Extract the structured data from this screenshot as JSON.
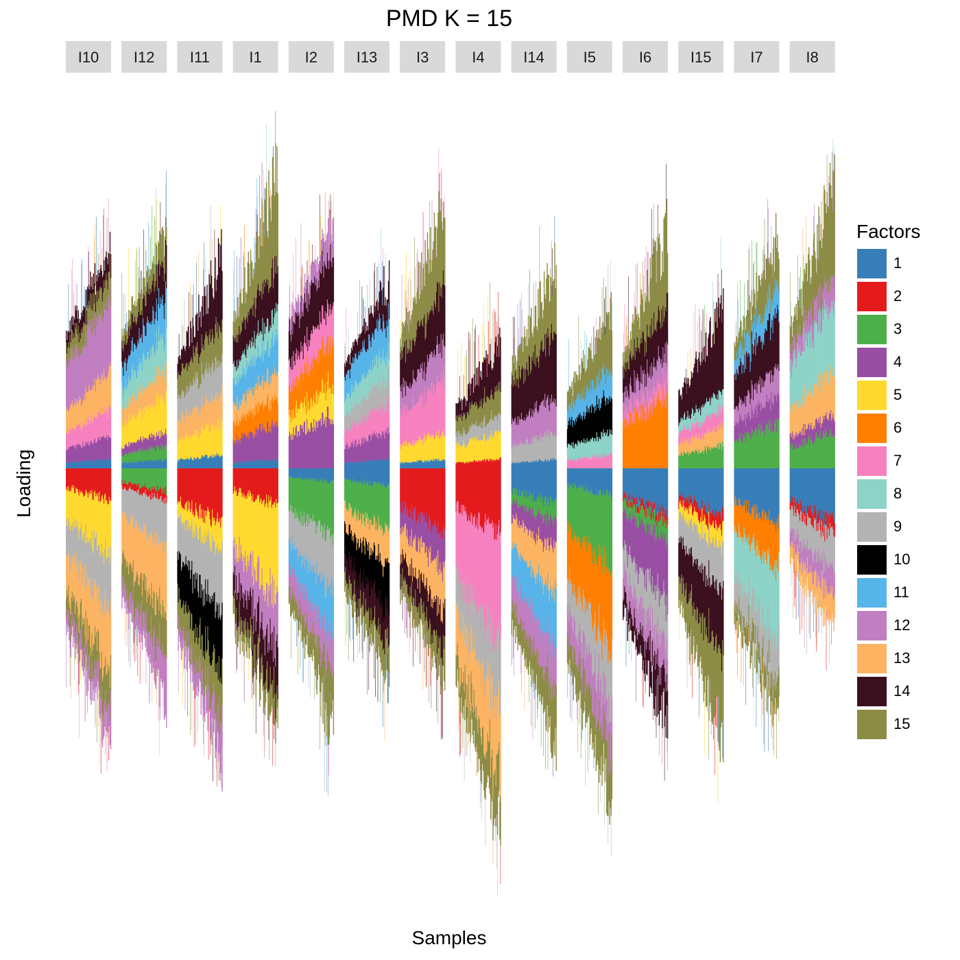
{
  "chart_data": {
    "type": "bar",
    "subtype": "stacked, faceted, diverging structure plot",
    "title": "PMD K = 15",
    "xlabel": "Samples",
    "ylabel": "Loading",
    "grid": false,
    "legend": {
      "title": "Factors",
      "position": "right"
    },
    "factors": [
      {
        "name": "1",
        "color": "#377EB8"
      },
      {
        "name": "2",
        "color": "#E41A1C"
      },
      {
        "name": "3",
        "color": "#4DAF4A"
      },
      {
        "name": "4",
        "color": "#984EA3"
      },
      {
        "name": "5",
        "color": "#FFD92F"
      },
      {
        "name": "6",
        "color": "#FF7F00"
      },
      {
        "name": "7",
        "color": "#F781BF"
      },
      {
        "name": "8",
        "color": "#8DD3C7"
      },
      {
        "name": "9",
        "color": "#B3B3B3"
      },
      {
        "name": "10",
        "color": "#000000"
      },
      {
        "name": "11",
        "color": "#56B4E9"
      },
      {
        "name": "12",
        "color": "#C07FC0"
      },
      {
        "name": "13",
        "color": "#FDB462"
      },
      {
        "name": "14",
        "color": "#3A0F1E"
      },
      {
        "name": "15",
        "color": "#8C8C46"
      }
    ],
    "facets": [
      {
        "label": "I10",
        "n_samples": 60,
        "pos_max": 0.62,
        "neg_max": 0.78,
        "pos": [
          {
            "f": 1,
            "v": 0.02
          },
          {
            "f": 4,
            "v": 0.05
          },
          {
            "f": 7,
            "v": 0.06
          },
          {
            "f": 13,
            "v": 0.08
          },
          {
            "f": 12,
            "v": 0.16
          },
          {
            "f": 15,
            "v": 0.06
          },
          {
            "f": 14,
            "v": 0.05
          }
        ],
        "neg": [
          {
            "f": 2,
            "v": 0.07
          },
          {
            "f": 5,
            "v": 0.12
          },
          {
            "f": 9,
            "v": 0.12
          },
          {
            "f": 13,
            "v": 0.14
          },
          {
            "f": 15,
            "v": 0.08
          },
          {
            "f": 12,
            "v": 0.06
          }
        ]
      },
      {
        "label": "I12",
        "n_samples": 60,
        "pos_max": 0.72,
        "neg_max": 0.72,
        "pos": [
          {
            "f": 1,
            "v": 0.02
          },
          {
            "f": 3,
            "v": 0.03
          },
          {
            "f": 4,
            "v": 0.03
          },
          {
            "f": 5,
            "v": 0.08
          },
          {
            "f": 13,
            "v": 0.06
          },
          {
            "f": 8,
            "v": 0.08
          },
          {
            "f": 11,
            "v": 0.08
          },
          {
            "f": 14,
            "v": 0.08
          },
          {
            "f": 15,
            "v": 0.05
          }
        ],
        "neg": [
          {
            "f": 3,
            "v": 0.05
          },
          {
            "f": 2,
            "v": 0.02
          },
          {
            "f": 9,
            "v": 0.1
          },
          {
            "f": 13,
            "v": 0.15
          },
          {
            "f": 15,
            "v": 0.1
          },
          {
            "f": 12,
            "v": 0.06
          }
        ]
      },
      {
        "label": "I11",
        "n_samples": 60,
        "pos_max": 0.68,
        "neg_max": 0.9,
        "pos": [
          {
            "f": 1,
            "v": 0.03
          },
          {
            "f": 5,
            "v": 0.07
          },
          {
            "f": 13,
            "v": 0.07
          },
          {
            "f": 9,
            "v": 0.08
          },
          {
            "f": 15,
            "v": 0.08
          },
          {
            "f": 14,
            "v": 0.05
          }
        ],
        "neg": [
          {
            "f": 2,
            "v": 0.12
          },
          {
            "f": 5,
            "v": 0.06
          },
          {
            "f": 9,
            "v": 0.14
          },
          {
            "f": 10,
            "v": 0.14
          },
          {
            "f": 15,
            "v": 0.1
          },
          {
            "f": 12,
            "v": 0.06
          }
        ]
      },
      {
        "label": "I1",
        "n_samples": 60,
        "pos_max": 0.95,
        "neg_max": 0.78,
        "pos": [
          {
            "f": 1,
            "v": 0.02
          },
          {
            "f": 4,
            "v": 0.08
          },
          {
            "f": 6,
            "v": 0.06
          },
          {
            "f": 13,
            "v": 0.06
          },
          {
            "f": 11,
            "v": 0.08
          },
          {
            "f": 8,
            "v": 0.06
          },
          {
            "f": 14,
            "v": 0.1
          },
          {
            "f": 15,
            "v": 0.06
          }
        ],
        "neg": [
          {
            "f": 2,
            "v": 0.08
          },
          {
            "f": 5,
            "v": 0.2
          },
          {
            "f": 12,
            "v": 0.12
          },
          {
            "f": 14,
            "v": 0.1
          },
          {
            "f": 15,
            "v": 0.06
          }
        ]
      },
      {
        "label": "I2",
        "n_samples": 60,
        "pos_max": 0.75,
        "neg_max": 0.82,
        "pos": [
          {
            "f": 4,
            "v": 0.12
          },
          {
            "f": 5,
            "v": 0.07
          },
          {
            "f": 6,
            "v": 0.1
          },
          {
            "f": 7,
            "v": 0.08
          },
          {
            "f": 14,
            "v": 0.12
          },
          {
            "f": 12,
            "v": 0.05
          }
        ],
        "neg": [
          {
            "f": 1,
            "v": 0.03
          },
          {
            "f": 3,
            "v": 0.12
          },
          {
            "f": 9,
            "v": 0.12
          },
          {
            "f": 11,
            "v": 0.1
          },
          {
            "f": 12,
            "v": 0.08
          },
          {
            "f": 15,
            "v": 0.06
          }
        ]
      },
      {
        "label": "I13",
        "n_samples": 60,
        "pos_max": 0.6,
        "neg_max": 0.62,
        "pos": [
          {
            "f": 1,
            "v": 0.02
          },
          {
            "f": 4,
            "v": 0.06
          },
          {
            "f": 7,
            "v": 0.06
          },
          {
            "f": 9,
            "v": 0.06
          },
          {
            "f": 8,
            "v": 0.06
          },
          {
            "f": 11,
            "v": 0.08
          },
          {
            "f": 14,
            "v": 0.05
          }
        ],
        "neg": [
          {
            "f": 1,
            "v": 0.04
          },
          {
            "f": 3,
            "v": 0.1
          },
          {
            "f": 13,
            "v": 0.08
          },
          {
            "f": 10,
            "v": 0.1
          },
          {
            "f": 14,
            "v": 0.08
          },
          {
            "f": 15,
            "v": 0.06
          }
        ]
      },
      {
        "label": "I3",
        "n_samples": 60,
        "pos_max": 0.85,
        "neg_max": 0.62,
        "pos": [
          {
            "f": 1,
            "v": 0.02
          },
          {
            "f": 5,
            "v": 0.06
          },
          {
            "f": 7,
            "v": 0.12
          },
          {
            "f": 12,
            "v": 0.08
          },
          {
            "f": 14,
            "v": 0.12
          },
          {
            "f": 15,
            "v": 0.06
          }
        ],
        "neg": [
          {
            "f": 2,
            "v": 0.14
          },
          {
            "f": 4,
            "v": 0.08
          },
          {
            "f": 13,
            "v": 0.1
          },
          {
            "f": 14,
            "v": 0.08
          },
          {
            "f": 15,
            "v": 0.06
          }
        ]
      },
      {
        "label": "I4",
        "n_samples": 60,
        "pos_max": 0.4,
        "neg_max": 1.05,
        "pos": [
          {
            "f": 2,
            "v": 0.02
          },
          {
            "f": 5,
            "v": 0.06
          },
          {
            "f": 9,
            "v": 0.04
          },
          {
            "f": 15,
            "v": 0.06
          },
          {
            "f": 14,
            "v": 0.04
          }
        ],
        "neg": [
          {
            "f": 2,
            "v": 0.14
          },
          {
            "f": 7,
            "v": 0.25
          },
          {
            "f": 9,
            "v": 0.14
          },
          {
            "f": 13,
            "v": 0.16
          },
          {
            "f": 15,
            "v": 0.1
          }
        ]
      },
      {
        "label": "I14",
        "n_samples": 60,
        "pos_max": 0.65,
        "neg_max": 0.85,
        "pos": [
          {
            "f": 1,
            "v": 0.02
          },
          {
            "f": 9,
            "v": 0.06
          },
          {
            "f": 12,
            "v": 0.08
          },
          {
            "f": 14,
            "v": 0.14
          },
          {
            "f": 15,
            "v": 0.06
          }
        ],
        "neg": [
          {
            "f": 1,
            "v": 0.08
          },
          {
            "f": 3,
            "v": 0.04
          },
          {
            "f": 4,
            "v": 0.06
          },
          {
            "f": 13,
            "v": 0.1
          },
          {
            "f": 11,
            "v": 0.12
          },
          {
            "f": 12,
            "v": 0.1
          },
          {
            "f": 15,
            "v": 0.08
          }
        ]
      },
      {
        "label": "I5",
        "n_samples": 60,
        "pos_max": 0.5,
        "neg_max": 1.05,
        "pos": [
          {
            "f": 7,
            "v": 0.03
          },
          {
            "f": 8,
            "v": 0.05
          },
          {
            "f": 10,
            "v": 0.08
          },
          {
            "f": 11,
            "v": 0.06
          },
          {
            "f": 15,
            "v": 0.05
          }
        ],
        "neg": [
          {
            "f": 1,
            "v": 0.06
          },
          {
            "f": 3,
            "v": 0.16
          },
          {
            "f": 6,
            "v": 0.18
          },
          {
            "f": 9,
            "v": 0.12
          },
          {
            "f": 12,
            "v": 0.1
          },
          {
            "f": 15,
            "v": 0.1
          }
        ]
      },
      {
        "label": "I6",
        "n_samples": 60,
        "pos_max": 0.75,
        "neg_max": 0.82,
        "pos": [
          {
            "f": 6,
            "v": 0.16
          },
          {
            "f": 7,
            "v": 0.04
          },
          {
            "f": 12,
            "v": 0.06
          },
          {
            "f": 14,
            "v": 0.1
          },
          {
            "f": 15,
            "v": 0.06
          }
        ],
        "neg": [
          {
            "f": 1,
            "v": 0.1
          },
          {
            "f": 2,
            "v": 0.02
          },
          {
            "f": 3,
            "v": 0.04
          },
          {
            "f": 4,
            "v": 0.14
          },
          {
            "f": 9,
            "v": 0.1
          },
          {
            "f": 12,
            "v": 0.08
          },
          {
            "f": 14,
            "v": 0.06
          }
        ]
      },
      {
        "label": "I15",
        "n_samples": 60,
        "pos_max": 0.5,
        "neg_max": 0.85,
        "pos": [
          {
            "f": 3,
            "v": 0.05
          },
          {
            "f": 13,
            "v": 0.04
          },
          {
            "f": 7,
            "v": 0.04
          },
          {
            "f": 8,
            "v": 0.04
          },
          {
            "f": 14,
            "v": 0.06
          }
        ],
        "neg": [
          {
            "f": 1,
            "v": 0.1
          },
          {
            "f": 2,
            "v": 0.03
          },
          {
            "f": 5,
            "v": 0.04
          },
          {
            "f": 9,
            "v": 0.1
          },
          {
            "f": 14,
            "v": 0.14
          },
          {
            "f": 15,
            "v": 0.1
          }
        ]
      },
      {
        "label": "I7",
        "n_samples": 60,
        "pos_max": 0.75,
        "neg_max": 0.65,
        "pos": [
          {
            "f": 3,
            "v": 0.1
          },
          {
            "f": 4,
            "v": 0.06
          },
          {
            "f": 12,
            "v": 0.06
          },
          {
            "f": 14,
            "v": 0.12
          },
          {
            "f": 11,
            "v": 0.06
          },
          {
            "f": 15,
            "v": 0.06
          }
        ],
        "neg": [
          {
            "f": 1,
            "v": 0.12
          },
          {
            "f": 6,
            "v": 0.1
          },
          {
            "f": 8,
            "v": 0.16
          },
          {
            "f": 9,
            "v": 0.1
          },
          {
            "f": 15,
            "v": 0.06
          }
        ]
      },
      {
        "label": "I8",
        "n_samples": 60,
        "pos_max": 0.9,
        "neg_max": 0.48,
        "pos": [
          {
            "f": 3,
            "v": 0.08
          },
          {
            "f": 4,
            "v": 0.04
          },
          {
            "f": 13,
            "v": 0.1
          },
          {
            "f": 8,
            "v": 0.16
          },
          {
            "f": 12,
            "v": 0.06
          },
          {
            "f": 15,
            "v": 0.06
          }
        ],
        "neg": [
          {
            "f": 1,
            "v": 0.12
          },
          {
            "f": 2,
            "v": 0.03
          },
          {
            "f": 9,
            "v": 0.08
          },
          {
            "f": 12,
            "v": 0.06
          },
          {
            "f": 13,
            "v": 0.06
          }
        ]
      }
    ]
  }
}
